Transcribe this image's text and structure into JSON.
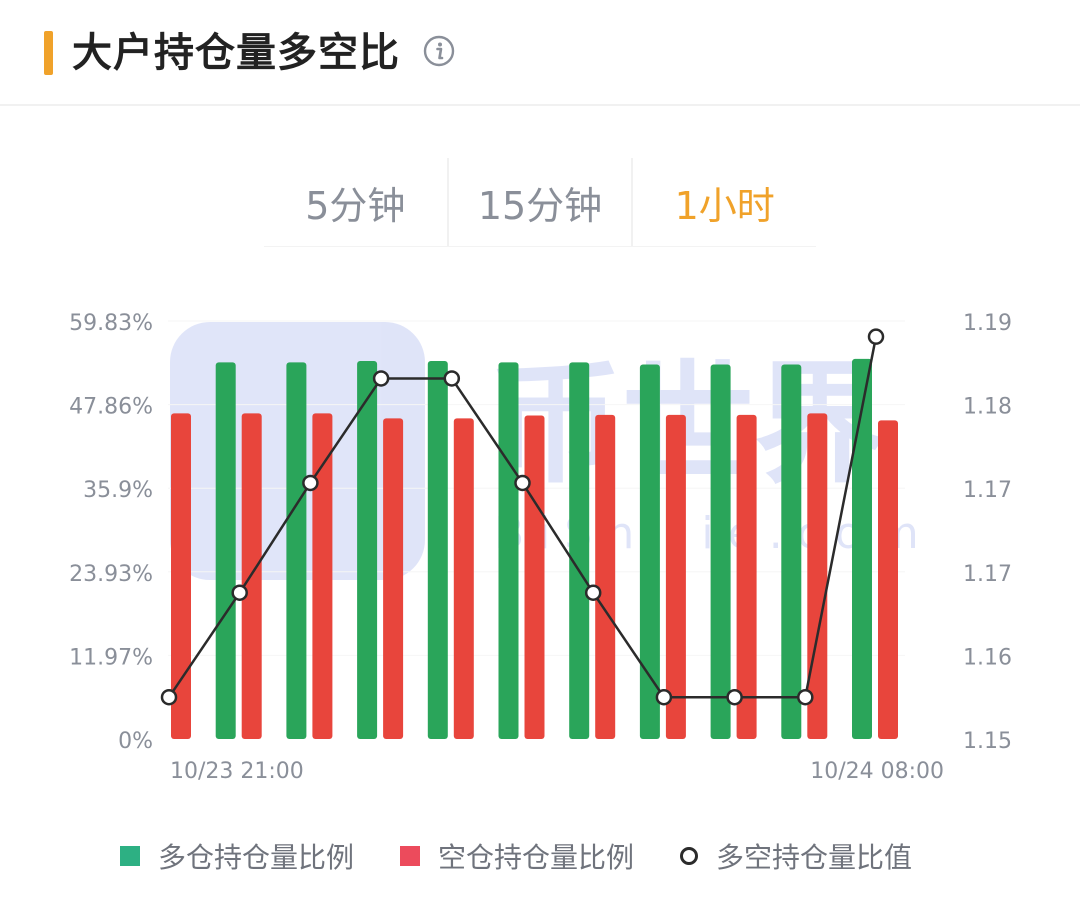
{
  "header": {
    "title": "大户持仓量多空比"
  },
  "tabs": [
    {
      "label": "5分钟",
      "active": false
    },
    {
      "label": "15分钟",
      "active": false
    },
    {
      "label": "1小时",
      "active": true
    }
  ],
  "colors": {
    "accent": "#f0a22a",
    "long": "#2aa55a",
    "short": "#e8453c",
    "ratio_line": "#2b2b2b"
  },
  "chart_data": {
    "type": "bar",
    "x_tick_labels": [
      "10/23 21:00",
      "10/24 08:00"
    ],
    "left_axis": {
      "ticks": [
        "0%",
        "11.97%",
        "23.93%",
        "35.9%",
        "47.86%",
        "59.83%"
      ],
      "ylim": [
        0,
        59.83
      ]
    },
    "right_axis": {
      "ticks": [
        "1.15",
        "1.16",
        "1.17",
        "1.17",
        "1.18",
        "1.19"
      ],
      "ylim": [
        1.15,
        1.19
      ]
    },
    "grid": true,
    "legend_position": "bottom",
    "series": [
      {
        "name": "多仓持仓量比例",
        "type": "bar",
        "axis": "left",
        "color": "#2aa55a",
        "values": [
          null,
          53.9,
          53.9,
          54.1,
          54.1,
          53.9,
          53.9,
          53.6,
          53.6,
          53.6,
          54.4
        ]
      },
      {
        "name": "空仓持仓量比例",
        "type": "bar",
        "axis": "left",
        "color": "#e8453c",
        "values": [
          46.6,
          46.6,
          46.6,
          45.9,
          45.9,
          46.3,
          46.4,
          46.4,
          46.4,
          46.6,
          45.6
        ]
      },
      {
        "name": "多空持仓量比值",
        "type": "line",
        "axis": "right",
        "color": "#2b2b2b",
        "values": [
          1.154,
          1.164,
          1.1745,
          1.1845,
          1.1845,
          1.1745,
          1.164,
          1.154,
          1.154,
          1.154,
          1.1885
        ]
      }
    ]
  },
  "watermark": {
    "text": "币世界",
    "sub_text": "BiShiJie.com"
  }
}
